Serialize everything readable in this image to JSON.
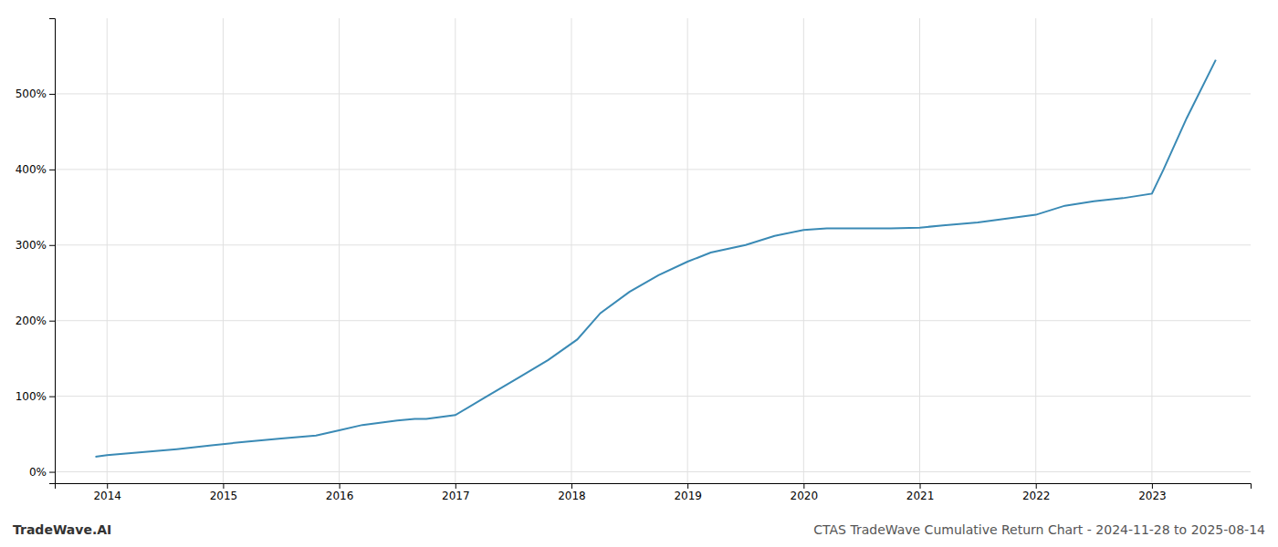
{
  "chart_data": {
    "type": "line",
    "title": "CTAS TradeWave Cumulative Return Chart - 2024-11-28 to 2025-08-14",
    "annotations": [
      "TradeWave.AI"
    ],
    "color": "#3a8ab5",
    "x": [
      2013.9,
      2014.0,
      2014.3,
      2014.6,
      2014.9,
      2015.2,
      2015.5,
      2015.8,
      2016.0,
      2016.2,
      2016.5,
      2016.65,
      2016.75,
      2017.0,
      2017.25,
      2017.55,
      2017.8,
      2018.05,
      2018.25,
      2018.5,
      2018.75,
      2019.0,
      2019.2,
      2019.5,
      2019.75,
      2020.0,
      2020.2,
      2020.5,
      2020.75,
      2021.0,
      2021.2,
      2021.5,
      2021.75,
      2022.0,
      2022.25,
      2022.5,
      2022.75,
      2023.0,
      2023.1,
      2023.3,
      2023.55
    ],
    "values": [
      20,
      22,
      26,
      30,
      35,
      40,
      44,
      48,
      55,
      62,
      68,
      70,
      70,
      75,
      98,
      125,
      148,
      175,
      210,
      238,
      260,
      278,
      290,
      300,
      312,
      320,
      322,
      322,
      322,
      323,
      326,
      330,
      335,
      340,
      352,
      358,
      362,
      368,
      400,
      468,
      545
    ],
    "xlim": [
      2013.55,
      2023.85
    ],
    "xticks": [
      2014,
      2015,
      2016,
      2017,
      2018,
      2019,
      2020,
      2021,
      2022,
      2023
    ],
    "ylim": [
      -15,
      600
    ],
    "yticks": [
      {
        "value": 0,
        "label": "0%"
      },
      {
        "value": 100,
        "label": "100%"
      },
      {
        "value": 200,
        "label": "200%"
      },
      {
        "value": 300,
        "label": "300%"
      },
      {
        "value": 400,
        "label": "400%"
      },
      {
        "value": 500,
        "label": "500%"
      }
    ],
    "grid": true
  }
}
